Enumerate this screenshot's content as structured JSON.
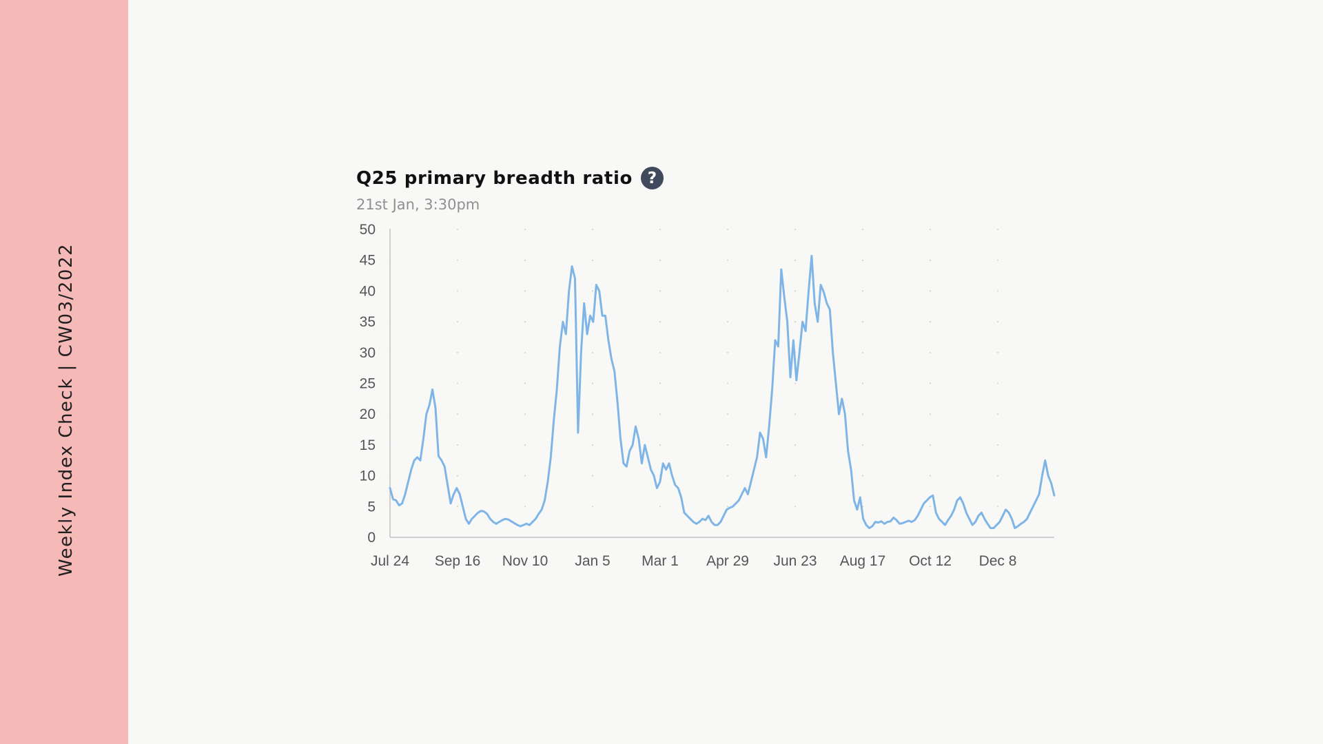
{
  "sidebar": {
    "label": "Weekly Index Check | CW03/2022"
  },
  "header": {
    "title": "Q25 primary breadth ratio",
    "subtitle": "21st Jan, 3:30pm",
    "help_icon": "question-circle-icon"
  },
  "colors": {
    "sidebar": "#f5b9b7",
    "line": "#7fb5e6",
    "background": "#f8f8f7",
    "help_icon": "#414a5c"
  },
  "chart_data": {
    "type": "line",
    "title": "Q25 primary breadth ratio",
    "subtitle": "21st Jan, 3:30pm",
    "xlabel": "",
    "ylabel": "",
    "ylim": [
      0,
      50
    ],
    "yticks": [
      0,
      5,
      10,
      15,
      20,
      25,
      30,
      35,
      40,
      45,
      50
    ],
    "xticks": [
      "Jul 24",
      "Sep 16",
      "Nov 10",
      "Jan 5",
      "Mar 1",
      "Apr 29",
      "Jun 23",
      "Aug 17",
      "Oct 12",
      "Dec 8"
    ],
    "grid": "dotted",
    "legend": "none",
    "series": [
      {
        "values": [
          8,
          6.2,
          6,
          5.2,
          5.5,
          7,
          9,
          11,
          12.5,
          13,
          12.5,
          16,
          20,
          21.5,
          24,
          21,
          13.2,
          12.5,
          11.5,
          8.5,
          5.5,
          7,
          8,
          7,
          5,
          3,
          2.2,
          3,
          3.5,
          4,
          4.3,
          4.2,
          3.8,
          3,
          2.5,
          2.2,
          2.5,
          2.8,
          3,
          2.9,
          2.6,
          2.3,
          2,
          1.8,
          2,
          2.2,
          2,
          2.5,
          3,
          3.8,
          4.5,
          6,
          9,
          13,
          19,
          24,
          31,
          35,
          33,
          40,
          44,
          42,
          17,
          30,
          38,
          33,
          36,
          35,
          41,
          40,
          36,
          36,
          32,
          29,
          27,
          22,
          16,
          12,
          11.5,
          14,
          15,
          18,
          16,
          12,
          15,
          13,
          11,
          10,
          8,
          9,
          12,
          11,
          12,
          10,
          8.5,
          8,
          6.5,
          4,
          3.5,
          3,
          2.5,
          2.2,
          2.5,
          3,
          2.8,
          3.5,
          2.5,
          2,
          2,
          2.5,
          3.5,
          4.5,
          4.8,
          5,
          5.5,
          6,
          7,
          8,
          7,
          9,
          11,
          13,
          17,
          16,
          13,
          18,
          24,
          32,
          31,
          43.5,
          39,
          35,
          26,
          32,
          25.5,
          30,
          35,
          33.5,
          40,
          45.7,
          38,
          35,
          41,
          39.8,
          38,
          37,
          30,
          25,
          20,
          22.5,
          20,
          14,
          11,
          6,
          4.5,
          6.5,
          3,
          2,
          1.5,
          1.8,
          2.5,
          2.4,
          2.6,
          2.2,
          2.5,
          2.6,
          3.2,
          2.8,
          2.2,
          2.3,
          2.5,
          2.7,
          2.5,
          2.8,
          3.5,
          4.5,
          5.5,
          6,
          6.5,
          6.8,
          4,
          3,
          2.5,
          2,
          2.8,
          3.5,
          4.5,
          6,
          6.5,
          5.5,
          4,
          3,
          2,
          2.5,
          3.5,
          4,
          3,
          2.2,
          1.5,
          1.5,
          2,
          2.5,
          3.5,
          4.5,
          4,
          3,
          1.5,
          1.8,
          2.2,
          2.5,
          3,
          4,
          5,
          6,
          7,
          10,
          12.5,
          10,
          8.8,
          6.8
        ]
      }
    ]
  }
}
